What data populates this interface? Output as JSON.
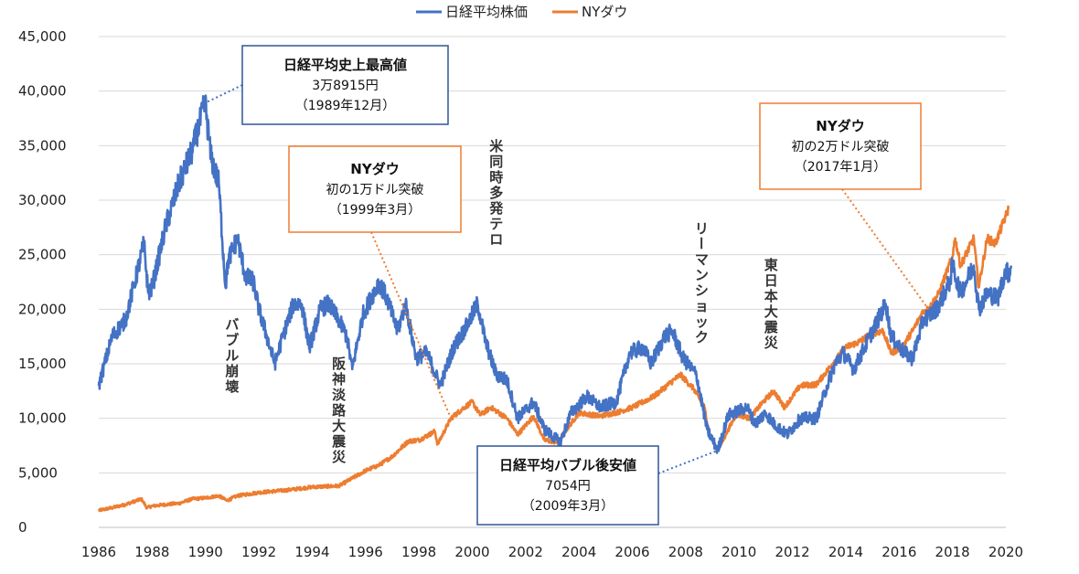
{
  "chart_data": {
    "type": "line",
    "legend_position": "top-center",
    "grid": "horizontal",
    "ylim": [
      0,
      45000
    ],
    "xlim": [
      1986,
      2020
    ],
    "y_ticks": [
      "0",
      "5,000",
      "10,000",
      "15,000",
      "20,000",
      "25,000",
      "30,000",
      "35,000",
      "40,000",
      "45,000"
    ],
    "x_ticks": [
      "1986",
      "1988",
      "1990",
      "1992",
      "1994",
      "1996",
      "1998",
      "2000",
      "2002",
      "2004",
      "2006",
      "2008",
      "2010",
      "2012",
      "2014",
      "2016",
      "2018",
      "2020"
    ],
    "series": [
      {
        "name": "日経平均株価",
        "color": "#4472C4",
        "points": [
          [
            1986.0,
            13000
          ],
          [
            1986.5,
            17500
          ],
          [
            1987.0,
            19000
          ],
          [
            1987.3,
            22000
          ],
          [
            1987.7,
            26000
          ],
          [
            1987.85,
            21500
          ],
          [
            1988.0,
            22000
          ],
          [
            1988.5,
            27500
          ],
          [
            1989.0,
            31500
          ],
          [
            1989.5,
            34500
          ],
          [
            1989.99,
            38915
          ],
          [
            1990.2,
            34000
          ],
          [
            1990.5,
            31500
          ],
          [
            1990.75,
            22000
          ],
          [
            1990.85,
            24500
          ],
          [
            1991.2,
            26500
          ],
          [
            1991.5,
            23000
          ],
          [
            1991.8,
            22500
          ],
          [
            1992.0,
            20000
          ],
          [
            1992.3,
            17500
          ],
          [
            1992.6,
            15000
          ],
          [
            1992.9,
            17500
          ],
          [
            1993.3,
            20500
          ],
          [
            1993.6,
            20500
          ],
          [
            1993.9,
            16500
          ],
          [
            1994.3,
            20000
          ],
          [
            1994.6,
            20500
          ],
          [
            1995.0,
            19000
          ],
          [
            1995.3,
            17500
          ],
          [
            1995.5,
            14500
          ],
          [
            1995.9,
            19500
          ],
          [
            1996.5,
            22500
          ],
          [
            1996.8,
            21000
          ],
          [
            1997.2,
            18000
          ],
          [
            1997.5,
            20500
          ],
          [
            1997.9,
            15500
          ],
          [
            1998.3,
            16000
          ],
          [
            1998.8,
            13000
          ],
          [
            1999.3,
            16500
          ],
          [
            1999.8,
            18500
          ],
          [
            2000.2,
            20500
          ],
          [
            2000.5,
            17000
          ],
          [
            2000.9,
            14000
          ],
          [
            2001.3,
            13500
          ],
          [
            2001.7,
            10000
          ],
          [
            2002.3,
            11500
          ],
          [
            2002.7,
            9000
          ],
          [
            2003.3,
            7800
          ],
          [
            2003.7,
            10500
          ],
          [
            2004.3,
            12000
          ],
          [
            2004.8,
            11000
          ],
          [
            2005.4,
            11500
          ],
          [
            2005.9,
            16000
          ],
          [
            2006.4,
            16500
          ],
          [
            2006.7,
            15000
          ],
          [
            2007.2,
            17500
          ],
          [
            2007.5,
            18000
          ],
          [
            2007.9,
            15500
          ],
          [
            2008.4,
            14000
          ],
          [
            2008.8,
            9000
          ],
          [
            2009.2,
            7054
          ],
          [
            2009.6,
            10300
          ],
          [
            2010.3,
            11000
          ],
          [
            2010.6,
            9500
          ],
          [
            2011.0,
            10500
          ],
          [
            2011.3,
            9500
          ],
          [
            2011.8,
            8500
          ],
          [
            2012.3,
            10000
          ],
          [
            2012.9,
            10000
          ],
          [
            2013.3,
            13000
          ],
          [
            2013.6,
            15000
          ],
          [
            2013.9,
            16000
          ],
          [
            2014.3,
            14500
          ],
          [
            2014.9,
            17500
          ],
          [
            2015.5,
            20500
          ],
          [
            2015.7,
            17500
          ],
          [
            2016.2,
            16000
          ],
          [
            2016.5,
            15500
          ],
          [
            2016.9,
            19000
          ],
          [
            2017.4,
            20000
          ],
          [
            2017.9,
            22500
          ],
          [
            2018.0,
            24000
          ],
          [
            2018.3,
            21500
          ],
          [
            2018.8,
            24000
          ],
          [
            2018.99,
            20000
          ],
          [
            2019.3,
            21500
          ],
          [
            2019.7,
            21000
          ],
          [
            2019.99,
            23600
          ],
          [
            2020.1,
            23200
          ],
          [
            2020.2,
            24000
          ]
        ]
      },
      {
        "name": "NYダウ",
        "color": "#ED7D31",
        "points": [
          [
            1986.0,
            1550
          ],
          [
            1986.5,
            1800
          ],
          [
            1987.0,
            2100
          ],
          [
            1987.6,
            2600
          ],
          [
            1987.8,
            1800
          ],
          [
            1988.0,
            1950
          ],
          [
            1988.5,
            2100
          ],
          [
            1989.0,
            2200
          ],
          [
            1989.5,
            2600
          ],
          [
            1990.0,
            2700
          ],
          [
            1990.5,
            2900
          ],
          [
            1990.8,
            2450
          ],
          [
            1991.2,
            2900
          ],
          [
            1992.0,
            3200
          ],
          [
            1993.0,
            3400
          ],
          [
            1994.0,
            3700
          ],
          [
            1995.0,
            3800
          ],
          [
            1995.5,
            4500
          ],
          [
            1996.0,
            5200
          ],
          [
            1996.5,
            5700
          ],
          [
            1997.0,
            6500
          ],
          [
            1997.6,
            7900
          ],
          [
            1998.0,
            8000
          ],
          [
            1998.6,
            8800
          ],
          [
            1998.7,
            7600
          ],
          [
            1999.2,
            10000
          ],
          [
            1999.7,
            11000
          ],
          [
            2000.0,
            11500
          ],
          [
            2000.3,
            10300
          ],
          [
            2000.7,
            11000
          ],
          [
            2001.3,
            10000
          ],
          [
            2001.7,
            8500
          ],
          [
            2002.3,
            10200
          ],
          [
            2002.7,
            8000
          ],
          [
            2003.2,
            7800
          ],
          [
            2003.6,
            9200
          ],
          [
            2004.0,
            10500
          ],
          [
            2004.8,
            10200
          ],
          [
            2005.5,
            10600
          ],
          [
            2006.0,
            11000
          ],
          [
            2006.8,
            12000
          ],
          [
            2007.3,
            13000
          ],
          [
            2007.8,
            14000
          ],
          [
            2008.3,
            12700
          ],
          [
            2008.7,
            11000
          ],
          [
            2008.9,
            8500
          ],
          [
            2009.2,
            7000
          ],
          [
            2009.5,
            8500
          ],
          [
            2009.9,
            10400
          ],
          [
            2010.4,
            10000
          ],
          [
            2010.9,
            11500
          ],
          [
            2011.3,
            12500
          ],
          [
            2011.7,
            11000
          ],
          [
            2012.3,
            13000
          ],
          [
            2012.9,
            13100
          ],
          [
            2013.5,
            15000
          ],
          [
            2013.99,
            16500
          ],
          [
            2014.5,
            17000
          ],
          [
            2014.99,
            17800
          ],
          [
            2015.4,
            18000
          ],
          [
            2015.7,
            16000
          ],
          [
            2016.1,
            16500
          ],
          [
            2016.5,
            18000
          ],
          [
            2016.9,
            19800
          ],
          [
            2017.1,
            20000
          ],
          [
            2017.5,
            21500
          ],
          [
            2017.99,
            24800
          ],
          [
            2018.1,
            26500
          ],
          [
            2018.3,
            24000
          ],
          [
            2018.8,
            26500
          ],
          [
            2018.98,
            22000
          ],
          [
            2019.3,
            26500
          ],
          [
            2019.6,
            26000
          ],
          [
            2019.99,
            28500
          ],
          [
            2020.1,
            29200
          ]
        ]
      }
    ],
    "annotations": [
      {
        "lines": [
          "日経平均史上最高値",
          "3万8915円",
          "（1989年12月）"
        ],
        "border": "#2F5597",
        "target": [
          1989.99,
          38915
        ],
        "color": "#4472C4"
      },
      {
        "lines": [
          "NYダウ",
          "初の1万ドル突破",
          "（1999年3月）"
        ],
        "border": "#ED7D31",
        "target": [
          1999.2,
          10000
        ],
        "color": "#ED7D31"
      },
      {
        "lines": [
          "NYダウ",
          "初の2万ドル突破",
          "（2017年1月）"
        ],
        "border": "#ED7D31",
        "target": [
          2017.1,
          20000
        ],
        "color": "#ED7D31"
      },
      {
        "lines": [
          "日経平均バブル後安値",
          "7054円",
          "（2009年3月）"
        ],
        "border": "#2F5597",
        "target": [
          2009.2,
          7054
        ],
        "color": "#4472C4"
      }
    ],
    "event_labels": [
      {
        "text": "バブル崩壊",
        "x": 1991.0
      },
      {
        "text": "阪神淡路大震災",
        "x": 1995.0
      },
      {
        "text": "米同時多発テロ",
        "x": 2000.9
      },
      {
        "text": "リーマンショック",
        "x": 2008.6
      },
      {
        "text": "東日本大震災",
        "x": 2011.2
      }
    ]
  }
}
